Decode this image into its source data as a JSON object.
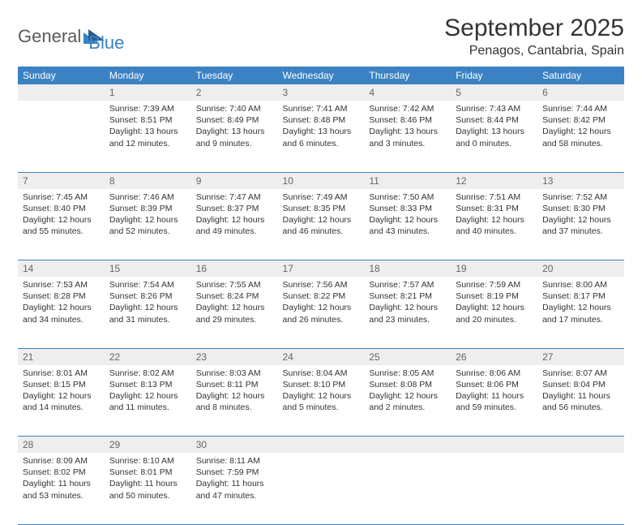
{
  "logo": {
    "general": "General",
    "blue": "Blue",
    "triangle_color": "#3b82c4"
  },
  "title": "September 2025",
  "location": "Penagos, Cantabria, Spain",
  "header_bg": "#3b82c4",
  "header_fg": "#ffffff",
  "daynum_bg": "#eeeeee",
  "daynum_fg": "#666666",
  "row_border": "#3b82c4",
  "text_color": "#333333",
  "background_color": "#ffffff",
  "title_fontsize": 30,
  "location_fontsize": 16,
  "header_fontsize": 12,
  "body_fontsize": 10.5,
  "weekdays": [
    "Sunday",
    "Monday",
    "Tuesday",
    "Wednesday",
    "Thursday",
    "Friday",
    "Saturday"
  ],
  "weeks": [
    {
      "nums": [
        "",
        "1",
        "2",
        "3",
        "4",
        "5",
        "6"
      ],
      "cells": [
        {
          "sunrise": "",
          "sunset": "",
          "daylight": ""
        },
        {
          "sunrise": "Sunrise: 7:39 AM",
          "sunset": "Sunset: 8:51 PM",
          "daylight": "Daylight: 13 hours and 12 minutes."
        },
        {
          "sunrise": "Sunrise: 7:40 AM",
          "sunset": "Sunset: 8:49 PM",
          "daylight": "Daylight: 13 hours and 9 minutes."
        },
        {
          "sunrise": "Sunrise: 7:41 AM",
          "sunset": "Sunset: 8:48 PM",
          "daylight": "Daylight: 13 hours and 6 minutes."
        },
        {
          "sunrise": "Sunrise: 7:42 AM",
          "sunset": "Sunset: 8:46 PM",
          "daylight": "Daylight: 13 hours and 3 minutes."
        },
        {
          "sunrise": "Sunrise: 7:43 AM",
          "sunset": "Sunset: 8:44 PM",
          "daylight": "Daylight: 13 hours and 0 minutes."
        },
        {
          "sunrise": "Sunrise: 7:44 AM",
          "sunset": "Sunset: 8:42 PM",
          "daylight": "Daylight: 12 hours and 58 minutes."
        }
      ]
    },
    {
      "nums": [
        "7",
        "8",
        "9",
        "10",
        "11",
        "12",
        "13"
      ],
      "cells": [
        {
          "sunrise": "Sunrise: 7:45 AM",
          "sunset": "Sunset: 8:40 PM",
          "daylight": "Daylight: 12 hours and 55 minutes."
        },
        {
          "sunrise": "Sunrise: 7:46 AM",
          "sunset": "Sunset: 8:39 PM",
          "daylight": "Daylight: 12 hours and 52 minutes."
        },
        {
          "sunrise": "Sunrise: 7:47 AM",
          "sunset": "Sunset: 8:37 PM",
          "daylight": "Daylight: 12 hours and 49 minutes."
        },
        {
          "sunrise": "Sunrise: 7:49 AM",
          "sunset": "Sunset: 8:35 PM",
          "daylight": "Daylight: 12 hours and 46 minutes."
        },
        {
          "sunrise": "Sunrise: 7:50 AM",
          "sunset": "Sunset: 8:33 PM",
          "daylight": "Daylight: 12 hours and 43 minutes."
        },
        {
          "sunrise": "Sunrise: 7:51 AM",
          "sunset": "Sunset: 8:31 PM",
          "daylight": "Daylight: 12 hours and 40 minutes."
        },
        {
          "sunrise": "Sunrise: 7:52 AM",
          "sunset": "Sunset: 8:30 PM",
          "daylight": "Daylight: 12 hours and 37 minutes."
        }
      ]
    },
    {
      "nums": [
        "14",
        "15",
        "16",
        "17",
        "18",
        "19",
        "20"
      ],
      "cells": [
        {
          "sunrise": "Sunrise: 7:53 AM",
          "sunset": "Sunset: 8:28 PM",
          "daylight": "Daylight: 12 hours and 34 minutes."
        },
        {
          "sunrise": "Sunrise: 7:54 AM",
          "sunset": "Sunset: 8:26 PM",
          "daylight": "Daylight: 12 hours and 31 minutes."
        },
        {
          "sunrise": "Sunrise: 7:55 AM",
          "sunset": "Sunset: 8:24 PM",
          "daylight": "Daylight: 12 hours and 29 minutes."
        },
        {
          "sunrise": "Sunrise: 7:56 AM",
          "sunset": "Sunset: 8:22 PM",
          "daylight": "Daylight: 12 hours and 26 minutes."
        },
        {
          "sunrise": "Sunrise: 7:57 AM",
          "sunset": "Sunset: 8:21 PM",
          "daylight": "Daylight: 12 hours and 23 minutes."
        },
        {
          "sunrise": "Sunrise: 7:59 AM",
          "sunset": "Sunset: 8:19 PM",
          "daylight": "Daylight: 12 hours and 20 minutes."
        },
        {
          "sunrise": "Sunrise: 8:00 AM",
          "sunset": "Sunset: 8:17 PM",
          "daylight": "Daylight: 12 hours and 17 minutes."
        }
      ]
    },
    {
      "nums": [
        "21",
        "22",
        "23",
        "24",
        "25",
        "26",
        "27"
      ],
      "cells": [
        {
          "sunrise": "Sunrise: 8:01 AM",
          "sunset": "Sunset: 8:15 PM",
          "daylight": "Daylight: 12 hours and 14 minutes."
        },
        {
          "sunrise": "Sunrise: 8:02 AM",
          "sunset": "Sunset: 8:13 PM",
          "daylight": "Daylight: 12 hours and 11 minutes."
        },
        {
          "sunrise": "Sunrise: 8:03 AM",
          "sunset": "Sunset: 8:11 PM",
          "daylight": "Daylight: 12 hours and 8 minutes."
        },
        {
          "sunrise": "Sunrise: 8:04 AM",
          "sunset": "Sunset: 8:10 PM",
          "daylight": "Daylight: 12 hours and 5 minutes."
        },
        {
          "sunrise": "Sunrise: 8:05 AM",
          "sunset": "Sunset: 8:08 PM",
          "daylight": "Daylight: 12 hours and 2 minutes."
        },
        {
          "sunrise": "Sunrise: 8:06 AM",
          "sunset": "Sunset: 8:06 PM",
          "daylight": "Daylight: 11 hours and 59 minutes."
        },
        {
          "sunrise": "Sunrise: 8:07 AM",
          "sunset": "Sunset: 8:04 PM",
          "daylight": "Daylight: 11 hours and 56 minutes."
        }
      ]
    },
    {
      "nums": [
        "28",
        "29",
        "30",
        "",
        "",
        "",
        ""
      ],
      "cells": [
        {
          "sunrise": "Sunrise: 8:09 AM",
          "sunset": "Sunset: 8:02 PM",
          "daylight": "Daylight: 11 hours and 53 minutes."
        },
        {
          "sunrise": "Sunrise: 8:10 AM",
          "sunset": "Sunset: 8:01 PM",
          "daylight": "Daylight: 11 hours and 50 minutes."
        },
        {
          "sunrise": "Sunrise: 8:11 AM",
          "sunset": "Sunset: 7:59 PM",
          "daylight": "Daylight: 11 hours and 47 minutes."
        },
        {
          "sunrise": "",
          "sunset": "",
          "daylight": ""
        },
        {
          "sunrise": "",
          "sunset": "",
          "daylight": ""
        },
        {
          "sunrise": "",
          "sunset": "",
          "daylight": ""
        },
        {
          "sunrise": "",
          "sunset": "",
          "daylight": ""
        }
      ]
    }
  ]
}
